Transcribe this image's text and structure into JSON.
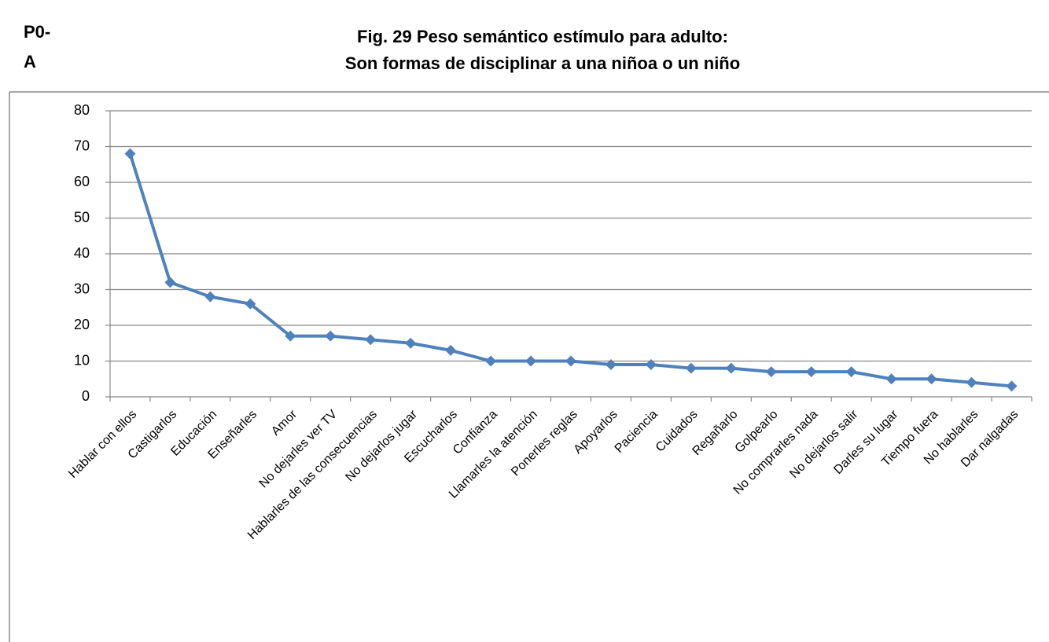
{
  "chart_data": {
    "type": "line",
    "corner_label": [
      "P0-",
      "A"
    ],
    "title": [
      "Fig. 29 Peso semántico estímulo para adulto:",
      "Son formas de disciplinar a una niñoa o un niño"
    ],
    "categories": [
      "Hablar con ellos",
      "Castigarlos",
      "Educación",
      "Enseñarles",
      "Amor",
      "No dejarles ver TV",
      "Hablarles de las consecuencias",
      "No dejarlos jugar",
      "Escucharlos",
      "Confianza",
      "Llamarles la atención",
      "Ponerles reglas",
      "Apoyarlos",
      "Paciencia",
      "Cuidados",
      "Regañarlo",
      "Golpearlo",
      "No comprarles nada",
      "No dejarlos salir",
      "Darles su lugar",
      "Tiempo fuera",
      "No hablarles",
      "Dar nalgadas"
    ],
    "values": [
      68,
      32,
      28,
      26,
      17,
      17,
      16,
      15,
      13,
      10,
      10,
      10,
      9,
      9,
      8,
      8,
      7,
      7,
      7,
      5,
      5,
      4,
      3
    ],
    "color": "#4f81bd",
    "ylim": [
      0,
      80
    ],
    "yticks": [
      0,
      10,
      20,
      30,
      40,
      50,
      60,
      70,
      80
    ],
    "grid": true
  }
}
